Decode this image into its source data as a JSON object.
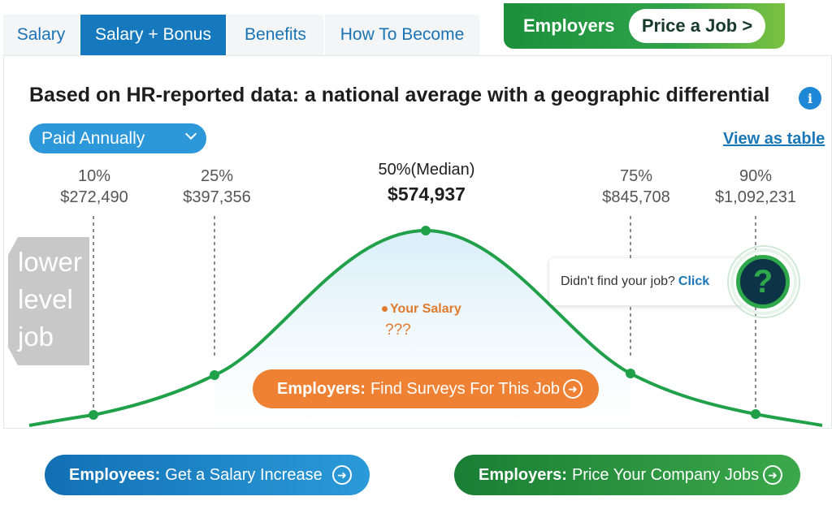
{
  "tabs": [
    {
      "label": "Salary",
      "active": false
    },
    {
      "label": "Salary + Bonus",
      "active": true
    },
    {
      "label": "Benefits",
      "active": false
    },
    {
      "label": "How To Become",
      "active": false
    }
  ],
  "employers_top": {
    "label": "Employers",
    "button": "Price a Job >"
  },
  "headline": "Based on HR-reported data: a national average with a geographic differential",
  "info_icon": "info-icon",
  "pay_select": {
    "value": "Paid Annually"
  },
  "view_table_link": "View as table",
  "percentiles": {
    "p10": {
      "label": "10%",
      "value": "$272,490"
    },
    "p25": {
      "label": "25%",
      "value": "$397,356"
    },
    "p50": {
      "label": "50%(Median)",
      "value": "$574,937"
    },
    "p75": {
      "label": "75%",
      "value": "$845,708"
    },
    "p90": {
      "label": "90%",
      "value": "$1,092,231"
    }
  },
  "lower_level": {
    "line1": "lower",
    "line2": "level",
    "line3": "job"
  },
  "your_salary": {
    "label": "Your Salary",
    "value": "???"
  },
  "find_surveys": {
    "bold": "Employers:",
    "text": "Find Surveys For This Job"
  },
  "popup": {
    "text": "Didn't find your job?",
    "link": "Click"
  },
  "help_glyph": "?",
  "bottom": {
    "employees": {
      "bold": "Employees:",
      "text": "Get a Salary Increase"
    },
    "employers": {
      "bold": "Employers:",
      "text": "Price Your Company Jobs"
    }
  },
  "colors": {
    "tab_active": "#1679be",
    "curve": "#21a04a",
    "orange": "#ee8133",
    "link_blue": "#1a77b7"
  }
}
